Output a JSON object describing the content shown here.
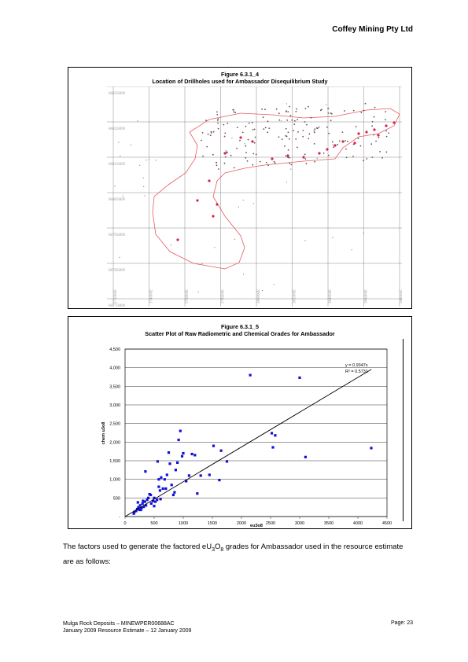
{
  "header": {
    "company": "Coffey Mining Pty Ltd"
  },
  "figure1": {
    "number": "Figure 6.3.1_4",
    "title": "Location of Drillholes used for Ambassador Disequilibrium Study",
    "northings": [
      "6683500N",
      "6682500N",
      "6681500N",
      "6680500N",
      "6679500N",
      "6678500N",
      "6677500N"
    ],
    "eastings": [
      "372000E",
      "374000E",
      "376000E",
      "378000E",
      "380000E",
      "382000E",
      "384000E",
      "386000E",
      "388000E"
    ],
    "colors": {
      "outline": "#e8595d",
      "highlight_hole": "#d8204e",
      "grid": "#888888"
    }
  },
  "figure2": {
    "number": "Figure 6.3.1_5",
    "title": "Scatter Plot of Raw Radiometric and Chemical Grades for Ambassador"
  },
  "chart_data": {
    "type": "scatter",
    "xlabel": "eu3o8",
    "ylabel": "chem u3o8",
    "xlim": [
      0,
      4500
    ],
    "ylim": [
      0,
      4500
    ],
    "xticks": [
      0,
      500,
      1000,
      1500,
      2000,
      2500,
      3000,
      3500,
      4000,
      4500
    ],
    "yticks": [
      0,
      500,
      1000,
      1500,
      2000,
      2500,
      3000,
      3500,
      4000,
      4500
    ],
    "xtick_labels": [
      "0",
      "500",
      "1000",
      "1500",
      "2000",
      "2500",
      "3000",
      "3500",
      "4000",
      "4500"
    ],
    "ytick_labels": [
      "-",
      "500",
      "1,000",
      "1,500",
      "2,000",
      "2,500",
      "3,000",
      "3,500",
      "4,000",
      "4,500"
    ],
    "grid": true,
    "marker_color": "#1010d8",
    "trendline": {
      "slope": 0.9347,
      "equation": "y = 0.9347x",
      "r2": "R² = 0.5731"
    },
    "points": [
      [
        150,
        80
      ],
      [
        160,
        120
      ],
      [
        190,
        150
      ],
      [
        210,
        200
      ],
      [
        230,
        250
      ],
      [
        250,
        180
      ],
      [
        260,
        300
      ],
      [
        280,
        220
      ],
      [
        300,
        350
      ],
      [
        320,
        260
      ],
      [
        340,
        400
      ],
      [
        360,
        300
      ],
      [
        380,
        450
      ],
      [
        400,
        500
      ],
      [
        420,
        600
      ],
      [
        450,
        350
      ],
      [
        480,
        420
      ],
      [
        500,
        500
      ],
      [
        520,
        400
      ],
      [
        550,
        450
      ],
      [
        580,
        800
      ],
      [
        600,
        700
      ],
      [
        620,
        1050
      ],
      [
        650,
        750
      ],
      [
        680,
        1000
      ],
      [
        700,
        750
      ],
      [
        720,
        1120
      ],
      [
        750,
        1720
      ],
      [
        770,
        1420
      ],
      [
        800,
        850
      ],
      [
        830,
        580
      ],
      [
        850,
        650
      ],
      [
        870,
        1250
      ],
      [
        900,
        1450
      ],
      [
        920,
        2060
      ],
      [
        950,
        2300
      ],
      [
        980,
        1620
      ],
      [
        1000,
        1700
      ],
      [
        1050,
        950
      ],
      [
        1100,
        1100
      ],
      [
        1150,
        1680
      ],
      [
        1200,
        1650
      ],
      [
        1240,
        620
      ],
      [
        1300,
        1100
      ],
      [
        1450,
        1120
      ],
      [
        1520,
        1900
      ],
      [
        1650,
        1770
      ],
      [
        1620,
        980
      ],
      [
        1750,
        1480
      ],
      [
        350,
        1210
      ],
      [
        560,
        1480
      ],
      [
        500,
        280
      ],
      [
        220,
        380
      ],
      [
        270,
        180
      ],
      [
        310,
        420
      ],
      [
        440,
        580
      ],
      [
        610,
        470
      ],
      [
        2150,
        3800
      ],
      [
        3000,
        3730
      ],
      [
        2520,
        2240
      ],
      [
        2580,
        2180
      ],
      [
        2540,
        1860
      ],
      [
        3100,
        1600
      ],
      [
        4230,
        1840
      ],
      [
        580,
        1000
      ]
    ]
  },
  "paragraph": {
    "before": "The factors used to generate the factored eU",
    "sub1": "3",
    "mid": "O",
    "sub2": "8",
    "after": " grades for Ambassador used in the resource estimate are as follows:"
  },
  "footer": {
    "line1": "Mulga Rock Deposits – MINEWPER00688AC",
    "line2": "January 2009 Resource Estimate – 12 January 2009",
    "page": "Page:  23"
  }
}
